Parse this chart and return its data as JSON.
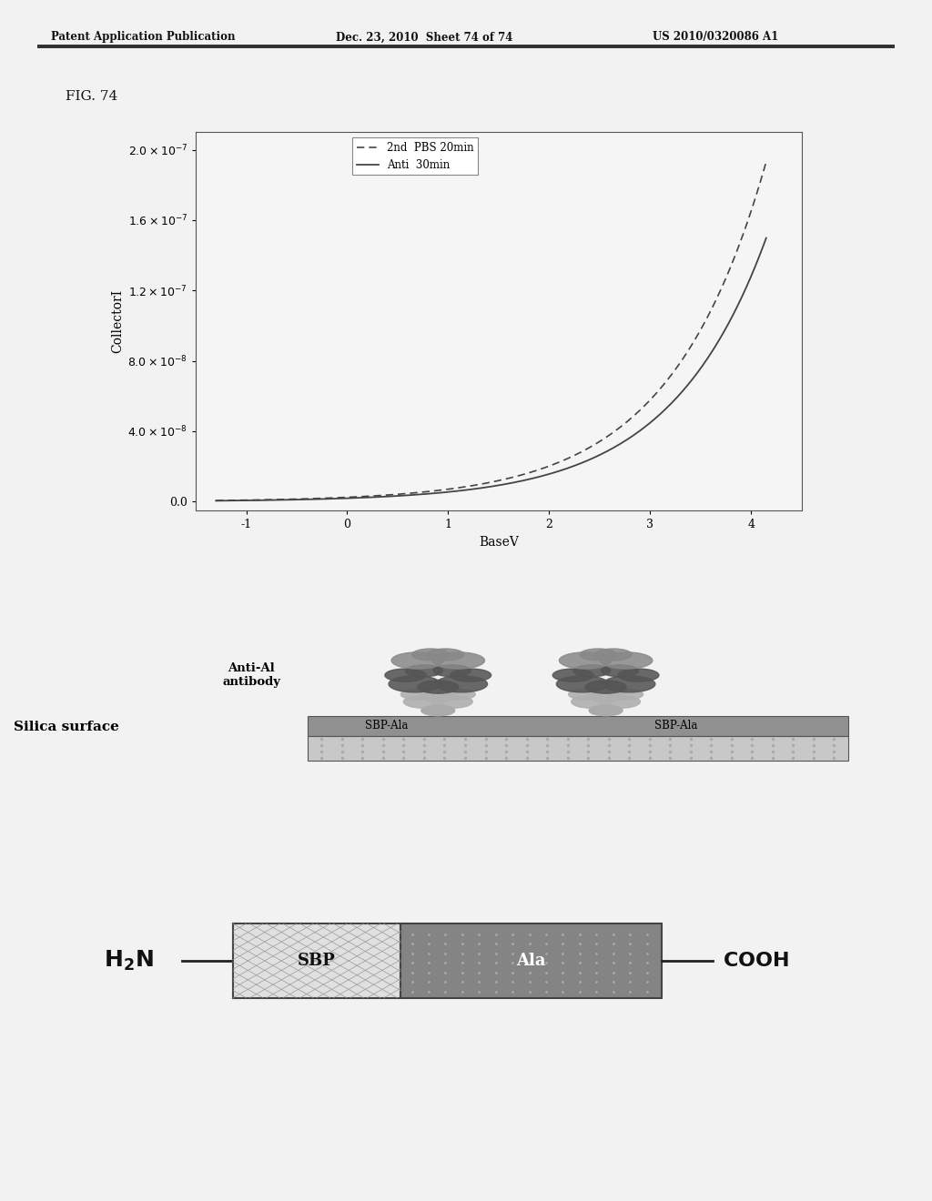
{
  "header_left": "Patent Application Publication",
  "header_mid": "Dec. 23, 2010  Sheet 74 of 74",
  "header_right": "US 2010/0320086 A1",
  "fig_label": "FIG. 74",
  "xlabel": "BaseV",
  "ylabel": "CollectorI",
  "xlim": [
    -1.5,
    4.5
  ],
  "ylim": [
    -5e-09,
    2.1e-07
  ],
  "xticks": [
    -1,
    0,
    1,
    2,
    3,
    4
  ],
  "yticks": [
    0.0,
    4e-08,
    8e-08,
    1.2e-07,
    1.6e-07,
    2e-07
  ],
  "legend_labels": [
    "2nd  PBS 20min",
    "Anti  30min"
  ],
  "line_color": "#444444",
  "background_color": "#f0f0f0",
  "silica_label": "Silica surface",
  "sbp_ala_label": "SBP-Ala",
  "anti_al_label": "Anti-Al\nantibody",
  "sbp_box_label": "SBP",
  "ala_box_label": "Ala"
}
